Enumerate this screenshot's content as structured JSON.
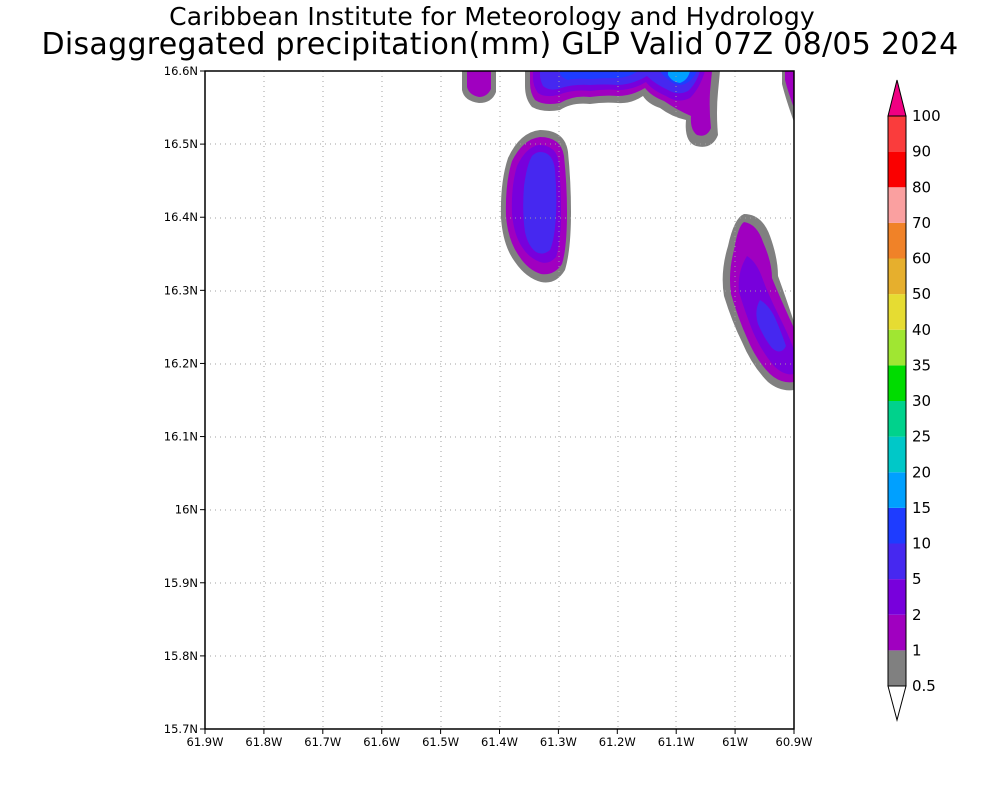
{
  "header": {
    "institution": "Caribbean Institute for Meteorology and Hydrology",
    "product": "Disaggregated precipitation(mm) GLP Valid 07Z 08/05 2024"
  },
  "map": {
    "lat_labels": [
      "16.6N",
      "16.5N",
      "16.4N",
      "16.3N",
      "16.2N",
      "16.1N",
      "16N",
      "15.9N",
      "15.8N",
      "15.7N"
    ],
    "lon_labels": [
      "61.9W",
      "61.8W",
      "61.7W",
      "61.6W",
      "61.5W",
      "61.4W",
      "61.3W",
      "61.2W",
      "61.1W",
      "61W",
      "60.9W"
    ],
    "lat_range": [
      15.7,
      16.6
    ],
    "lon_range": [
      -61.9,
      -60.9
    ]
  },
  "legend": {
    "levels": [
      "0.5",
      "1",
      "2",
      "5",
      "10",
      "15",
      "20",
      "25",
      "30",
      "35",
      "40",
      "50",
      "60",
      "70",
      "80",
      "90",
      "100"
    ],
    "colors": [
      "#808080",
      "#a000c0",
      "#7800dc",
      "#4628f0",
      "#1e3cff",
      "#00a0ff",
      "#00c8c8",
      "#00d28c",
      "#00dc00",
      "#a0e632",
      "#e6dc32",
      "#e6af2d",
      "#f08228",
      "#faa0a0",
      "#fa0000",
      "#fa3c3c",
      "#f00082"
    ],
    "below_min_color": "#ffffff"
  },
  "colors": {
    "gray_contour": "#808080",
    "level_1": "#a000c0",
    "level_2": "#7800dc",
    "level_5": "#4628f0",
    "level_10": "#1e3cff",
    "level_15": "#00a0ff"
  }
}
